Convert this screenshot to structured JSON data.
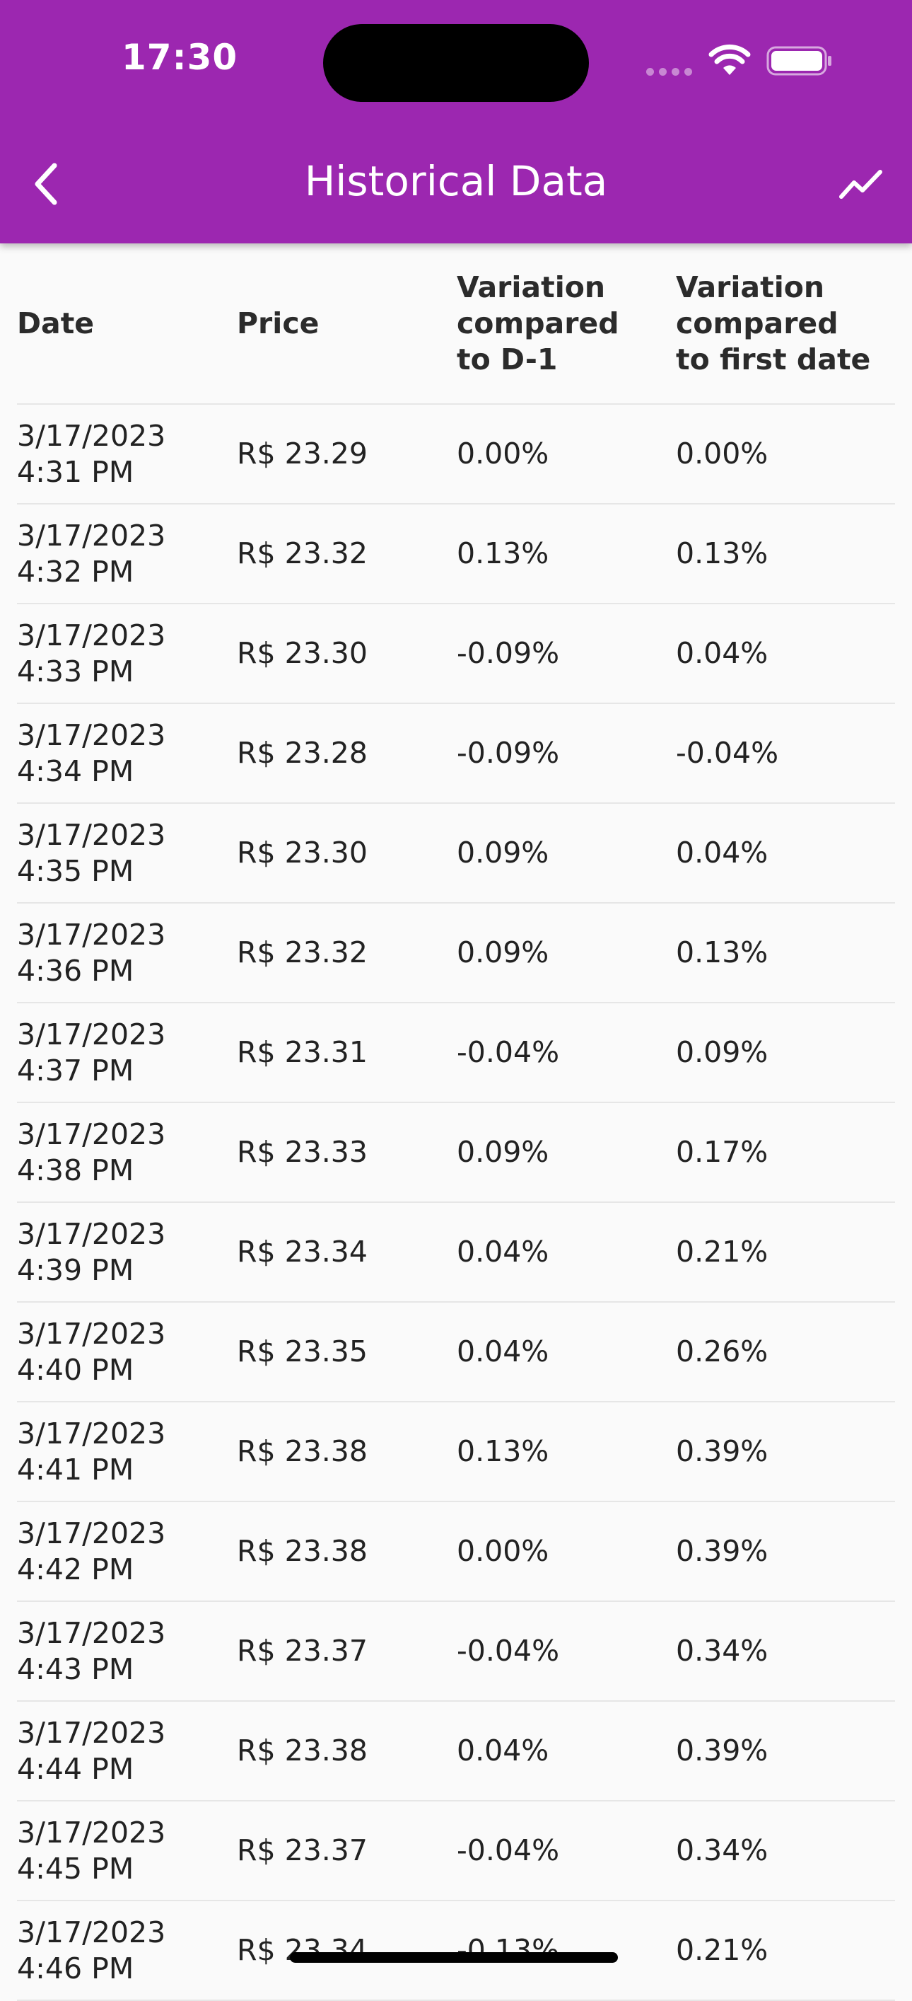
{
  "status_bar": {
    "time": "17:30"
  },
  "header": {
    "title": "Historical Data",
    "back_icon": "chevron-left-icon",
    "chart_icon": "trending-chart-icon"
  },
  "colors": {
    "app_bar": "#9c27b0",
    "background": "#fafafa"
  },
  "table": {
    "columns": [
      "Date",
      "Price",
      "Variation compared to D-1",
      "Variation compared to first date"
    ],
    "rows": [
      {
        "date": "3/17/2023",
        "time": "4:31 PM",
        "price": "R$ 23.29",
        "var_d1": "0.00%",
        "var_first": "0.00%"
      },
      {
        "date": "3/17/2023",
        "time": "4:32 PM",
        "price": "R$ 23.32",
        "var_d1": "0.13%",
        "var_first": "0.13%"
      },
      {
        "date": "3/17/2023",
        "time": "4:33 PM",
        "price": "R$ 23.30",
        "var_d1": "-0.09%",
        "var_first": "0.04%"
      },
      {
        "date": "3/17/2023",
        "time": "4:34 PM",
        "price": "R$ 23.28",
        "var_d1": "-0.09%",
        "var_first": "-0.04%"
      },
      {
        "date": "3/17/2023",
        "time": "4:35 PM",
        "price": "R$ 23.30",
        "var_d1": "0.09%",
        "var_first": "0.04%"
      },
      {
        "date": "3/17/2023",
        "time": "4:36 PM",
        "price": "R$ 23.32",
        "var_d1": "0.09%",
        "var_first": "0.13%"
      },
      {
        "date": "3/17/2023",
        "time": "4:37 PM",
        "price": "R$ 23.31",
        "var_d1": "-0.04%",
        "var_first": "0.09%"
      },
      {
        "date": "3/17/2023",
        "time": "4:38 PM",
        "price": "R$ 23.33",
        "var_d1": "0.09%",
        "var_first": "0.17%"
      },
      {
        "date": "3/17/2023",
        "time": "4:39 PM",
        "price": "R$ 23.34",
        "var_d1": "0.04%",
        "var_first": "0.21%"
      },
      {
        "date": "3/17/2023",
        "time": "4:40 PM",
        "price": "R$ 23.35",
        "var_d1": "0.04%",
        "var_first": "0.26%"
      },
      {
        "date": "3/17/2023",
        "time": "4:41 PM",
        "price": "R$ 23.38",
        "var_d1": "0.13%",
        "var_first": "0.39%"
      },
      {
        "date": "3/17/2023",
        "time": "4:42 PM",
        "price": "R$ 23.38",
        "var_d1": "0.00%",
        "var_first": "0.39%"
      },
      {
        "date": "3/17/2023",
        "time": "4:43 PM",
        "price": "R$ 23.37",
        "var_d1": "-0.04%",
        "var_first": "0.34%"
      },
      {
        "date": "3/17/2023",
        "time": "4:44 PM",
        "price": "R$ 23.38",
        "var_d1": "0.04%",
        "var_first": "0.39%"
      },
      {
        "date": "3/17/2023",
        "time": "4:45 PM",
        "price": "R$ 23.37",
        "var_d1": "-0.04%",
        "var_first": "0.34%"
      },
      {
        "date": "3/17/2023",
        "time": "4:46 PM",
        "price": "R$ 23.34",
        "var_d1": "-0.13%",
        "var_first": "0.21%"
      }
    ]
  }
}
